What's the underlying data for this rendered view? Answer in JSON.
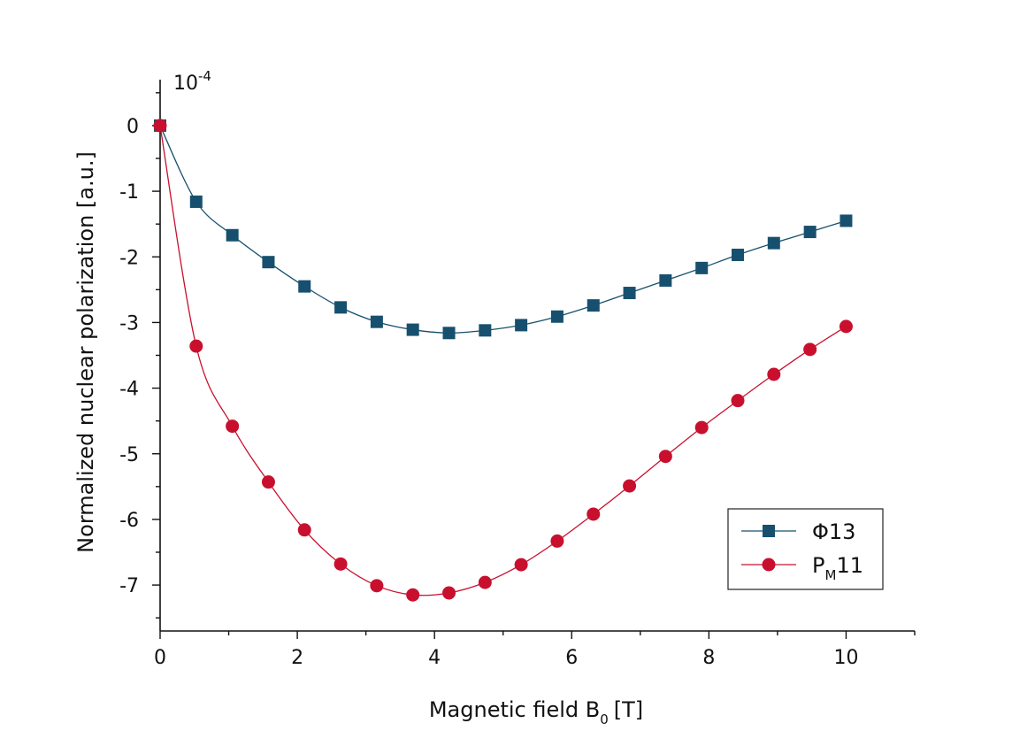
{
  "chart_data": {
    "type": "line",
    "title": "",
    "xlabel": "Magnetic field B",
    "xlabel_sub": "0",
    "xlabel_unit": "[T]",
    "ylabel": "Normalized nuclear polarization [a.u.]",
    "y_scale_label_base": "10",
    "y_scale_label_exp": "-4",
    "xlim": [
      0,
      11
    ],
    "ylim": [
      -7.7,
      0.7
    ],
    "xticks": [
      "0",
      "2",
      "4",
      "6",
      "8",
      "10"
    ],
    "yticks": [
      "0",
      "-1",
      "-2",
      "-3",
      "-4",
      "-5",
      "-6",
      "-7"
    ],
    "legend_position": "bottom-right",
    "series": [
      {
        "name": "Φ13",
        "legend_parts": [
          "Φ13",
          "",
          ""
        ],
        "marker": "square",
        "color": "#17506e",
        "x": [
          0,
          0.526,
          1.053,
          1.579,
          2.105,
          2.632,
          3.158,
          3.684,
          4.211,
          4.737,
          5.263,
          5.789,
          6.316,
          6.842,
          7.368,
          7.895,
          8.421,
          8.947,
          9.474,
          10.0
        ],
        "y": [
          0,
          -1.16,
          -1.67,
          -2.08,
          -2.45,
          -2.77,
          -2.99,
          -3.11,
          -3.16,
          -3.12,
          -3.04,
          -2.91,
          -2.74,
          -2.55,
          -2.36,
          -2.17,
          -1.97,
          -1.79,
          -1.62,
          -1.45
        ]
      },
      {
        "name": "PM11",
        "legend_parts": [
          "P",
          "M",
          "11"
        ],
        "marker": "circle",
        "color": "#c8102e",
        "x": [
          0,
          0.526,
          1.053,
          1.579,
          2.105,
          2.632,
          3.158,
          3.684,
          4.211,
          4.737,
          5.263,
          5.789,
          6.316,
          6.842,
          7.368,
          7.895,
          8.421,
          8.947,
          9.474,
          10.0
        ],
        "y": [
          0,
          -3.36,
          -4.58,
          -5.43,
          -6.16,
          -6.68,
          -7.01,
          -7.15,
          -7.12,
          -6.96,
          -6.69,
          -6.33,
          -5.92,
          -5.49,
          -5.04,
          -4.6,
          -4.19,
          -3.79,
          -3.41,
          -3.06
        ]
      }
    ]
  }
}
